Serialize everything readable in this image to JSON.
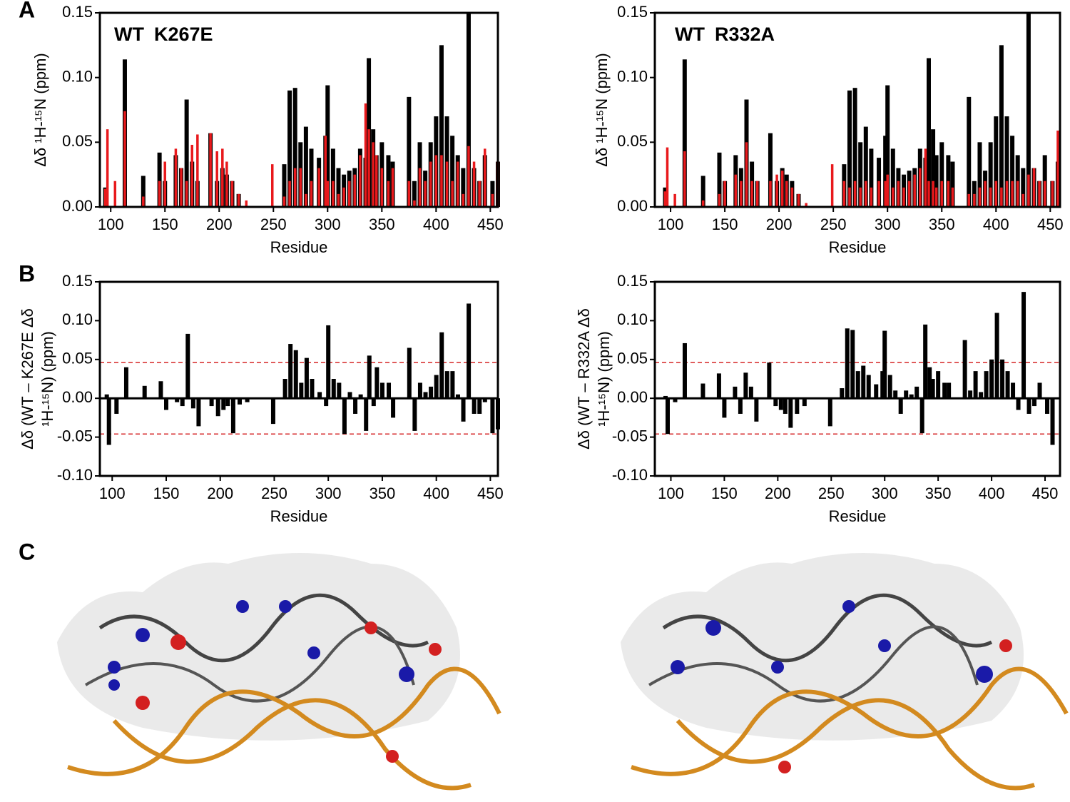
{
  "panel_labels": [
    "A",
    "B",
    "C"
  ],
  "chart_data": [
    {
      "type": "bar",
      "legend": "upper left",
      "xlabel": "Residue",
      "ylabel": "Δδ ¹H-¹⁵N (ppm)",
      "xlim": [
        90,
        457
      ],
      "xticks": [
        100,
        150,
        200,
        250,
        300,
        350,
        400,
        450
      ],
      "ylim": [
        0,
        0.15
      ],
      "yticks": [
        {
          "value": 0,
          "label": "0.00"
        },
        {
          "value": 0.05,
          "label": "0.05"
        },
        {
          "value": 0.1,
          "label": "0.10"
        },
        {
          "value": 0.15,
          "label": "0.15"
        }
      ],
      "x": [
        95,
        97,
        104,
        113,
        130,
        145,
        150,
        160,
        165,
        170,
        175,
        180,
        192,
        198,
        203,
        207,
        212,
        218,
        225,
        249,
        260,
        265,
        270,
        275,
        280,
        285,
        292,
        298,
        300,
        305,
        310,
        315,
        320,
        325,
        330,
        335,
        338,
        342,
        345,
        350,
        356,
        360,
        375,
        380,
        385,
        390,
        395,
        400,
        405,
        410,
        415,
        420,
        425,
        430,
        435,
        440,
        445,
        452,
        457
      ],
      "series": [
        {
          "name": "WT",
          "color": "#000000",
          "values": [
            0.015,
            null,
            null,
            0.114,
            0.024,
            0.042,
            0.02,
            0.04,
            0.03,
            0.083,
            0.035,
            0.02,
            0.057,
            0.02,
            0.03,
            0.025,
            0.02,
            0.01,
            null,
            null,
            0.033,
            0.09,
            0.092,
            0.05,
            0.062,
            0.045,
            0.038,
            0.055,
            0.094,
            0.045,
            0.03,
            0.025,
            0.028,
            0.03,
            0.045,
            0.038,
            0.115,
            0.06,
            0.04,
            0.05,
            0.04,
            0.035,
            0.085,
            0.02,
            0.05,
            0.028,
            0.05,
            0.07,
            0.125,
            0.07,
            0.055,
            0.04,
            0.03,
            0.15,
            0.03,
            0.02,
            0.04,
            0.02,
            0.035
          ]
        },
        {
          "name": "K267E",
          "color": "#e8191c",
          "values": [
            0.014,
            0.06,
            0.02,
            0.074,
            0.008,
            0.02,
            0.035,
            0.045,
            0.03,
            0.02,
            0.048,
            0.056,
            0.057,
            0.043,
            0.045,
            0.035,
            0.02,
            0.01,
            0.005,
            0.033,
            0.008,
            0.02,
            0.03,
            0.03,
            0.01,
            0.02,
            0.03,
            0.055,
            0.02,
            0.02,
            0.01,
            0.015,
            0.02,
            0.025,
            0.04,
            0.08,
            0.06,
            0.05,
            0.04,
            0.03,
            0.02,
            0.03,
            0.02,
            0.005,
            0.03,
            0.02,
            0.035,
            0.04,
            0.04,
            0.035,
            0.02,
            0.035,
            0.01,
            0.047,
            0.035,
            0.02,
            0.045,
            0.01,
            0.035
          ]
        }
      ]
    },
    {
      "type": "bar",
      "legend": "upper left",
      "xlabel": "Residue",
      "ylabel": "Δδ ¹H-¹⁵N (ppm)",
      "xlim": [
        85.5,
        459
      ],
      "xticks": [
        100,
        150,
        200,
        250,
        300,
        350,
        400,
        450
      ],
      "ylim": [
        0,
        0.15
      ],
      "yticks": [
        {
          "value": 0,
          "label": "0.00"
        },
        {
          "value": 0.05,
          "label": "0.05"
        },
        {
          "value": 0.1,
          "label": "0.10"
        },
        {
          "value": 0.15,
          "label": "0.15"
        }
      ],
      "x": [
        95,
        97,
        104,
        113,
        130,
        145,
        150,
        160,
        165,
        170,
        175,
        180,
        192,
        198,
        203,
        207,
        212,
        218,
        225,
        249,
        260,
        265,
        270,
        275,
        280,
        285,
        292,
        298,
        300,
        305,
        310,
        315,
        320,
        325,
        330,
        335,
        338,
        342,
        345,
        350,
        356,
        360,
        375,
        380,
        385,
        390,
        395,
        400,
        405,
        410,
        415,
        420,
        425,
        430,
        435,
        440,
        445,
        452,
        457
      ],
      "series": [
        {
          "name": "WT",
          "color": "#000000",
          "values": [
            0.015,
            null,
            null,
            0.114,
            0.024,
            0.042,
            0.02,
            0.04,
            0.03,
            0.083,
            0.035,
            0.02,
            0.057,
            0.02,
            0.03,
            0.025,
            0.02,
            0.01,
            null,
            null,
            0.033,
            0.09,
            0.092,
            0.05,
            0.062,
            0.045,
            0.038,
            0.055,
            0.094,
            0.045,
            0.03,
            0.025,
            0.028,
            0.03,
            0.045,
            0.038,
            0.115,
            0.06,
            0.04,
            0.05,
            0.04,
            0.035,
            0.085,
            0.02,
            0.05,
            0.028,
            0.05,
            0.07,
            0.125,
            0.07,
            0.055,
            0.04,
            0.03,
            0.15,
            0.03,
            0.02,
            0.04,
            0.02,
            0.035
          ]
        },
        {
          "name": "R332A",
          "color": "#e8191c",
          "values": [
            0.012,
            0.046,
            0.01,
            0.043,
            0.005,
            0.01,
            0.02,
            0.025,
            0.02,
            0.05,
            0.02,
            0.02,
            0.02,
            0.025,
            0.028,
            0.02,
            0.015,
            0.01,
            0.003,
            0.033,
            0.02,
            0.015,
            0.02,
            0.015,
            0.02,
            0.015,
            0.02,
            0.02,
            0.025,
            0.015,
            0.02,
            0.015,
            0.02,
            0.025,
            0.03,
            0.045,
            0.02,
            0.02,
            0.015,
            0.02,
            0.02,
            0.015,
            0.01,
            0.01,
            0.015,
            0.02,
            0.015,
            0.02,
            0.015,
            0.02,
            0.02,
            0.02,
            0.01,
            0.025,
            0.03,
            0.02,
            0.02,
            0.02,
            0.059
          ]
        }
      ]
    },
    {
      "type": "bar",
      "xlabel": "Residue",
      "ylabel": [
        "Δδ (WT – K267E Δδ",
        "¹H-¹⁵N)  (ppm)"
      ],
      "xlim": [
        88.6,
        457
      ],
      "xticks": [
        100,
        150,
        200,
        250,
        300,
        350,
        400,
        450
      ],
      "ylim": [
        -0.1,
        0.15
      ],
      "yticks": [
        {
          "value": -0.1,
          "label": "-0.10"
        },
        {
          "value": -0.05,
          "label": "-0.05"
        },
        {
          "value": 0,
          "label": "0.00"
        },
        {
          "value": 0.05,
          "label": "0.05"
        },
        {
          "value": 0.1,
          "label": "0.10"
        },
        {
          "value": 0.15,
          "label": "0.15"
        }
      ],
      "hlines": [
        0.046,
        -0.046
      ],
      "hline_color": "#d62728",
      "x": [
        95,
        97,
        104,
        113,
        130,
        145,
        150,
        160,
        165,
        170,
        175,
        180,
        192,
        198,
        203,
        207,
        212,
        218,
        225,
        249,
        260,
        265,
        270,
        275,
        280,
        285,
        292,
        298,
        300,
        305,
        310,
        315,
        320,
        325,
        330,
        335,
        338,
        342,
        345,
        350,
        356,
        360,
        375,
        380,
        385,
        390,
        395,
        400,
        405,
        410,
        415,
        420,
        425,
        430,
        435,
        440,
        445,
        452,
        457
      ],
      "color": "#000000",
      "values": [
        0.005,
        -0.06,
        -0.02,
        0.04,
        0.016,
        0.022,
        -0.015,
        -0.005,
        -0.01,
        0.083,
        -0.013,
        -0.036,
        -0.01,
        -0.023,
        -0.015,
        -0.01,
        -0.045,
        -0.008,
        -0.005,
        -0.033,
        0.025,
        0.07,
        0.062,
        0.02,
        0.052,
        0.025,
        0.008,
        -0.01,
        0.094,
        0.025,
        0.02,
        -0.046,
        0.008,
        -0.02,
        0.005,
        -0.042,
        0.055,
        -0.01,
        0.04,
        0.02,
        0.02,
        -0.025,
        0.065,
        -0.042,
        0.02,
        0.008,
        0.015,
        0.03,
        0.085,
        0.035,
        0.035,
        0.005,
        -0.03,
        0.122,
        -0.02,
        -0.02,
        -0.005,
        -0.045,
        -0.04
      ]
    },
    {
      "type": "bar",
      "xlabel": "Residue",
      "ylabel": [
        "Δδ (WT – R332A Δδ",
        "¹H-¹⁵N)  (ppm)"
      ],
      "xlim": [
        85,
        464
      ],
      "xticks": [
        100,
        150,
        200,
        250,
        300,
        350,
        400,
        450
      ],
      "ylim": [
        -0.1,
        0.15
      ],
      "yticks": [
        {
          "value": -0.1,
          "label": "-0.10"
        },
        {
          "value": -0.05,
          "label": "-0.05"
        },
        {
          "value": 0,
          "label": "0.00"
        },
        {
          "value": 0.05,
          "label": "0.05"
        },
        {
          "value": 0.1,
          "label": "0.10"
        },
        {
          "value": 0.15,
          "label": "0.15"
        }
      ],
      "hlines": [
        0.046,
        -0.046
      ],
      "hline_color": "#d62728",
      "x": [
        95,
        97,
        104,
        113,
        130,
        145,
        150,
        160,
        165,
        170,
        175,
        180,
        192,
        198,
        203,
        207,
        212,
        218,
        225,
        249,
        260,
        265,
        270,
        275,
        280,
        285,
        292,
        298,
        300,
        305,
        310,
        315,
        320,
        325,
        330,
        335,
        338,
        342,
        345,
        350,
        356,
        360,
        375,
        380,
        385,
        390,
        395,
        400,
        405,
        410,
        415,
        420,
        425,
        430,
        435,
        440,
        445,
        452,
        457
      ],
      "color": "#000000",
      "values": [
        0.003,
        -0.046,
        -0.005,
        0.071,
        0.019,
        0.032,
        -0.025,
        0.015,
        -0.02,
        0.033,
        0.015,
        -0.03,
        0.046,
        -0.01,
        -0.015,
        -0.02,
        -0.038,
        -0.02,
        -0.01,
        -0.036,
        0.013,
        0.09,
        0.088,
        0.035,
        0.042,
        0.03,
        0.018,
        0.035,
        0.087,
        0.03,
        0.01,
        -0.02,
        0.01,
        0.005,
        0.015,
        -0.045,
        0.095,
        0.04,
        0.025,
        0.035,
        0.02,
        0.02,
        0.075,
        0.01,
        0.035,
        0.008,
        0.035,
        0.05,
        0.11,
        0.05,
        0.035,
        0.02,
        -0.015,
        0.137,
        -0.02,
        -0.01,
        0.02,
        -0.02,
        -0.06
      ]
    }
  ]
}
